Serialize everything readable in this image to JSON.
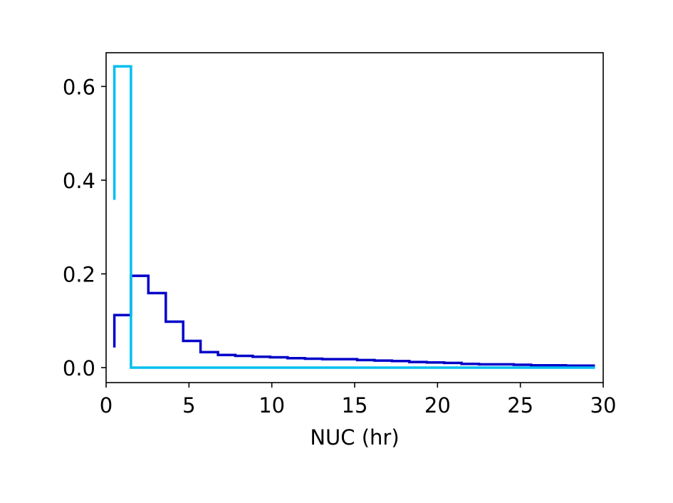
{
  "chart_data": {
    "type": "line",
    "drawstyle": "steps",
    "xlabel": "NUC (hr)",
    "ylabel": "",
    "xlim": [
      0,
      30
    ],
    "ylim": [
      -0.032,
      0.672
    ],
    "xticks": [
      0,
      5,
      10,
      15,
      20,
      25,
      30
    ],
    "yticks": [
      0.0,
      0.2,
      0.4,
      0.6
    ],
    "xtick_labels": [
      "0",
      "5",
      "10",
      "15",
      "20",
      "25",
      "30"
    ],
    "ytick_labels": [
      "0.0",
      "0.2",
      "0.4",
      "0.6"
    ],
    "grid": false,
    "series": [
      {
        "color": "#0000c8",
        "x": [
          0.5,
          0.5,
          1.5,
          1.5,
          2.55,
          2.55,
          3.6,
          3.6,
          4.65,
          4.65,
          5.7,
          5.7,
          6.75,
          6.75,
          7.8,
          7.8,
          8.85,
          8.85,
          9.9,
          9.9,
          10.95,
          10.95,
          12.0,
          12.0,
          13.05,
          13.05,
          14.1,
          14.1,
          15.15,
          15.15,
          16.2,
          16.2,
          17.25,
          17.25,
          18.3,
          18.3,
          19.35,
          19.35,
          20.4,
          20.4,
          21.45,
          21.45,
          22.5,
          22.5,
          23.55,
          23.55,
          24.6,
          24.6,
          25.65,
          25.65,
          26.7,
          26.7,
          27.75,
          27.75,
          28.8,
          28.8,
          29.5
        ],
        "y": [
          0.043,
          0.112,
          0.112,
          0.196,
          0.196,
          0.159,
          0.159,
          0.098,
          0.098,
          0.057,
          0.057,
          0.033,
          0.033,
          0.027,
          0.027,
          0.025,
          0.025,
          0.023,
          0.023,
          0.022,
          0.022,
          0.02,
          0.02,
          0.019,
          0.019,
          0.018,
          0.018,
          0.018,
          0.018,
          0.016,
          0.016,
          0.015,
          0.015,
          0.014,
          0.014,
          0.012,
          0.012,
          0.011,
          0.011,
          0.01,
          0.01,
          0.008,
          0.008,
          0.007,
          0.007,
          0.007,
          0.007,
          0.006,
          0.006,
          0.005,
          0.005,
          0.005,
          0.005,
          0.004,
          0.004,
          0.004,
          0.004
        ]
      },
      {
        "color": "#00bfef",
        "x": [
          0.5,
          0.5,
          1.5,
          1.5,
          29.5
        ],
        "y": [
          0.358,
          0.643,
          0.643,
          0.0,
          0.0
        ]
      }
    ]
  }
}
